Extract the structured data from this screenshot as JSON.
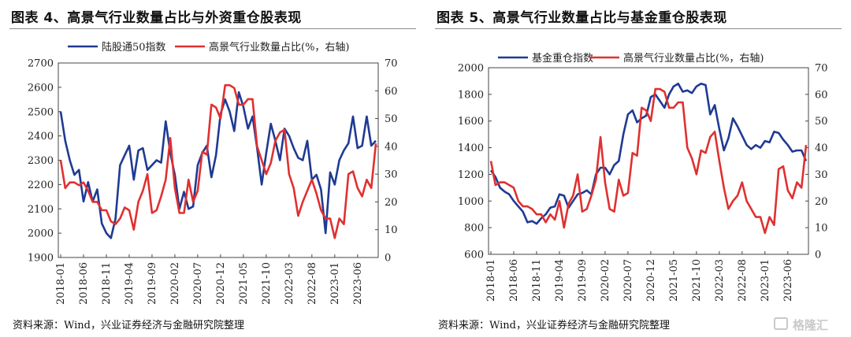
{
  "chart_data": [
    {
      "type": "line",
      "title": "图表 4、高景气行业数量占比与外资重仓股表现",
      "source": "资料来源：Wind，兴业证券经济与金融研究院整理",
      "x_ticks": [
        "2018-01",
        "2018-06",
        "2018-11",
        "2019-04",
        "2019-09",
        "2020-02",
        "2020-07",
        "2020-12",
        "2021-05",
        "2021-10",
        "2022-03",
        "2022-08",
        "2023-01",
        "2023-06"
      ],
      "ylim_left": [
        1900,
        2700
      ],
      "yticks_left": [
        1900,
        2000,
        2100,
        2200,
        2300,
        2400,
        2500,
        2600,
        2700
      ],
      "ylim_right": [
        0,
        70
      ],
      "yticks_right": [
        0,
        10,
        20,
        30,
        40,
        50,
        60,
        70
      ],
      "legend_position": "top",
      "grid": false,
      "series": [
        {
          "name": "陆股通50指数",
          "color": "#1f3a93",
          "axis": "left",
          "values": [
            2500,
            2380,
            2300,
            2240,
            2260,
            2130,
            2210,
            2130,
            2180,
            2040,
            2000,
            1980,
            2060,
            2280,
            2320,
            2360,
            2220,
            2340,
            2350,
            2260,
            2280,
            2300,
            2290,
            2460,
            2330,
            2240,
            2100,
            2170,
            2100,
            2110,
            2280,
            2330,
            2360,
            2230,
            2320,
            2490,
            2550,
            2500,
            2420,
            2580,
            2520,
            2430,
            2480,
            2350,
            2200,
            2330,
            2450,
            2380,
            2300,
            2430,
            2400,
            2350,
            2310,
            2300,
            2380,
            2220,
            2240,
            2180,
            2000,
            2250,
            2200,
            2300,
            2340,
            2370,
            2480,
            2350,
            2360,
            2480,
            2360,
            2380
          ]
        },
        {
          "name": "高景气行业数量占比(%，右轴)",
          "color": "#e03030",
          "axis": "right",
          "values": [
            35,
            25,
            27,
            27,
            26,
            27,
            24,
            20,
            20,
            17,
            17,
            13,
            12,
            14,
            18,
            17,
            10,
            20,
            24,
            30,
            16,
            17,
            22,
            28,
            43,
            25,
            16,
            16,
            28,
            20,
            24,
            38,
            37,
            55,
            54,
            50,
            62,
            62,
            61,
            55,
            55,
            57,
            57,
            40,
            35,
            30,
            34,
            42,
            45,
            46,
            30,
            25,
            15,
            20,
            24,
            28,
            23,
            17,
            14,
            14,
            7,
            14,
            12,
            30,
            31,
            25,
            22,
            28,
            25,
            41
          ]
        }
      ]
    },
    {
      "type": "line",
      "title": "图表 5、高景气行业数量占比与基金重仓股表现",
      "source": "资料来源：Wind，兴业证券经济与金融研究院整理",
      "x_ticks": [
        "2018-01",
        "2018-06",
        "2018-11",
        "2019-04",
        "2019-09",
        "2020-02",
        "2020-07",
        "2020-12",
        "2021-05",
        "2021-10",
        "2022-03",
        "2022-08",
        "2023-01",
        "2023-06"
      ],
      "ylim_left": [
        600,
        2000
      ],
      "yticks_left": [
        600,
        800,
        1000,
        1200,
        1400,
        1600,
        1800,
        2000
      ],
      "ylim_right": [
        0,
        70
      ],
      "yticks_right": [
        0,
        10,
        20,
        30,
        40,
        50,
        60,
        70
      ],
      "legend_position": "top",
      "grid": false,
      "series": [
        {
          "name": "基金重仓指数",
          "color": "#1f3a93",
          "axis": "left",
          "values": [
            1230,
            1180,
            1100,
            1070,
            1050,
            1000,
            960,
            920,
            840,
            850,
            830,
            870,
            900,
            950,
            960,
            1050,
            1040,
            950,
            1000,
            1050,
            1060,
            1080,
            1050,
            1200,
            1250,
            1250,
            1200,
            1270,
            1300,
            1500,
            1650,
            1680,
            1590,
            1620,
            1640,
            1780,
            1800,
            1750,
            1700,
            1800,
            1860,
            1880,
            1820,
            1830,
            1810,
            1860,
            1880,
            1870,
            1650,
            1720,
            1540,
            1380,
            1470,
            1620,
            1560,
            1490,
            1420,
            1390,
            1420,
            1400,
            1450,
            1440,
            1520,
            1510,
            1460,
            1420,
            1370,
            1380,
            1380,
            1300
          ]
        },
        {
          "name": "高景气行业数量占比(%，右轴)",
          "color": "#e03030",
          "axis": "right",
          "values": [
            35,
            26,
            27,
            27,
            26,
            25,
            20,
            18,
            18,
            17,
            15,
            15,
            12,
            15,
            13,
            20,
            10,
            19,
            22,
            30,
            16,
            17,
            22,
            28,
            44,
            27,
            17,
            16,
            28,
            22,
            23,
            38,
            37,
            55,
            54,
            50,
            62,
            62,
            61,
            55,
            55,
            57,
            57,
            40,
            36,
            30,
            39,
            38,
            44,
            46,
            35,
            25,
            17,
            20,
            22,
            27,
            20,
            17,
            14,
            14,
            8,
            14,
            11,
            32,
            33,
            24,
            21,
            27,
            25,
            41
          ]
        }
      ]
    }
  ],
  "watermark": {
    "text": "格隆汇"
  }
}
